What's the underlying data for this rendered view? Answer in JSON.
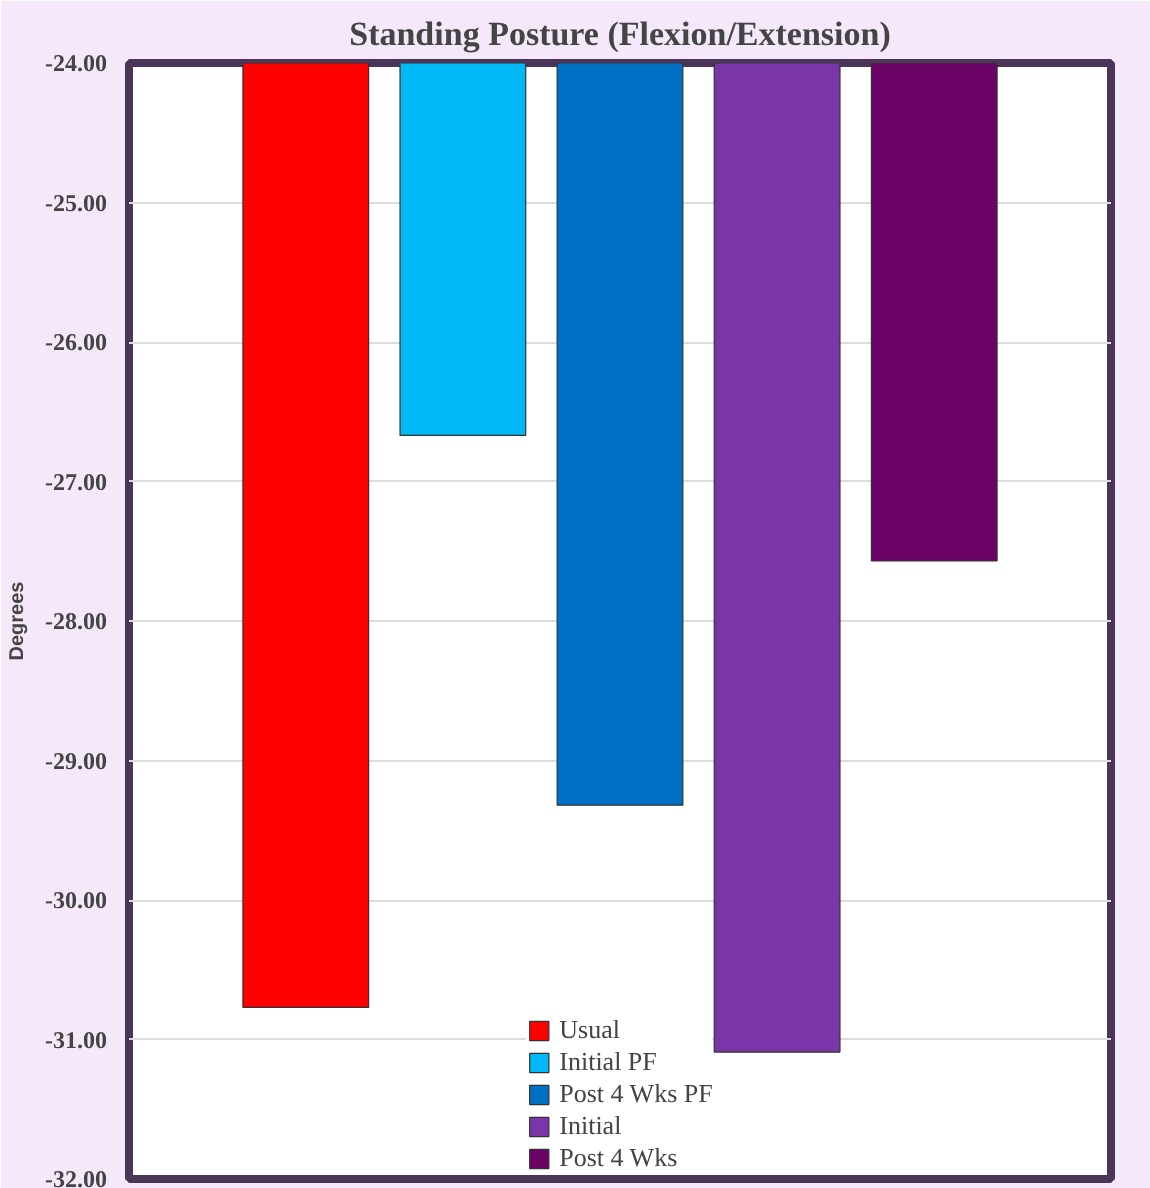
{
  "chart_data": {
    "type": "bar",
    "title": "Standing Posture (Flexion/Extension)",
    "ylabel": "Degrees",
    "categories": [
      null
    ],
    "series": [
      {
        "name": "Usual",
        "color": "#ff0000",
        "values": [
          -30.77
        ]
      },
      {
        "name": "Initial PF",
        "color": "#00b8f5",
        "values": [
          -26.67
        ]
      },
      {
        "name": "Post 4 Wks PF",
        "color": "#0070c4",
        "values": [
          -29.32
        ]
      },
      {
        "name": "Initial",
        "color": "#7a36a8",
        "values": [
          -31.09
        ]
      },
      {
        "name": "Post 4 Wks",
        "color": "#6c0468",
        "values": [
          -27.57
        ]
      }
    ],
    "ylim": [
      -32,
      -24
    ],
    "yticks": [
      {
        "value": -32,
        "label": "-32.00"
      },
      {
        "value": -31,
        "label": "-31.00"
      },
      {
        "value": -30,
        "label": "-30.00"
      },
      {
        "value": -29,
        "label": "-29.00"
      },
      {
        "value": -28,
        "label": "-28.00"
      },
      {
        "value": -27,
        "label": "-27.00"
      },
      {
        "value": -26,
        "label": "-26.00"
      },
      {
        "value": -25,
        "label": "-25.00"
      },
      {
        "value": -24,
        "label": "-24.00"
      }
    ],
    "grid": "y",
    "legend": "bottom",
    "tick_labels": "y"
  }
}
